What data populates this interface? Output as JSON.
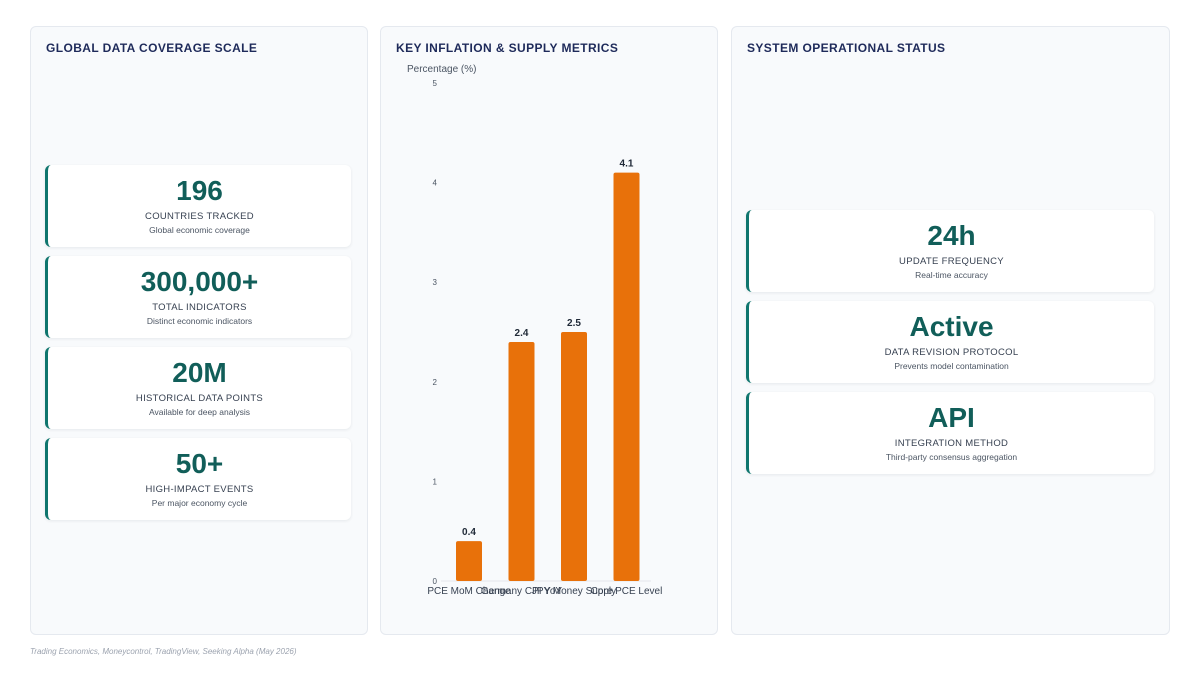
{
  "left_panel": {
    "title": "GLOBAL DATA COVERAGE SCALE",
    "cards": [
      {
        "value": "196",
        "label": "COUNTRIES TRACKED",
        "sub": "Global economic coverage"
      },
      {
        "value": "300,000+",
        "label": "TOTAL INDICATORS",
        "sub": "Distinct economic indicators"
      },
      {
        "value": "20M",
        "label": "HISTORICAL DATA POINTS",
        "sub": "Available for deep analysis"
      },
      {
        "value": "50+",
        "label": "HIGH-IMPACT EVENTS",
        "sub": "Per major economy cycle"
      }
    ]
  },
  "mid_panel": {
    "title": "KEY INFLATION & SUPPLY METRICS"
  },
  "right_panel": {
    "title": "SYSTEM OPERATIONAL STATUS",
    "cards": [
      {
        "value": "24h",
        "label": "UPDATE FREQUENCY",
        "sub": "Real-time accuracy"
      },
      {
        "value": "Active",
        "label": "DATA REVISION PROTOCOL",
        "sub": "Prevents model contamination"
      },
      {
        "value": "API",
        "label": "INTEGRATION METHOD",
        "sub": "Third-party consensus aggregation"
      }
    ]
  },
  "chart_data": {
    "type": "bar",
    "title": "KEY INFLATION & SUPPLY METRICS",
    "ylabel": "Percentage (%)",
    "xlabel": "",
    "categories": [
      "PCE MoM Change",
      "Germany CPI YoY",
      "JPY Money Supply",
      "Core PCE Level"
    ],
    "values": [
      0.4,
      2.4,
      2.5,
      4.1
    ],
    "value_labels": [
      "0.4",
      "2.4",
      "2.5",
      "4.1"
    ],
    "ylim": [
      0,
      5
    ],
    "yticks": [
      0,
      1,
      2,
      3,
      4,
      5
    ],
    "grid": false,
    "bar_color": "#e8710a"
  },
  "colors": {
    "accent": "#0f766e",
    "value_text": "#115e59",
    "title_text": "#1e2a5a",
    "bar": "#e8710a"
  },
  "footer": {
    "source": "Trading Economics, Moneycontrol, TradingView, Seeking Alpha (May 2026)"
  }
}
